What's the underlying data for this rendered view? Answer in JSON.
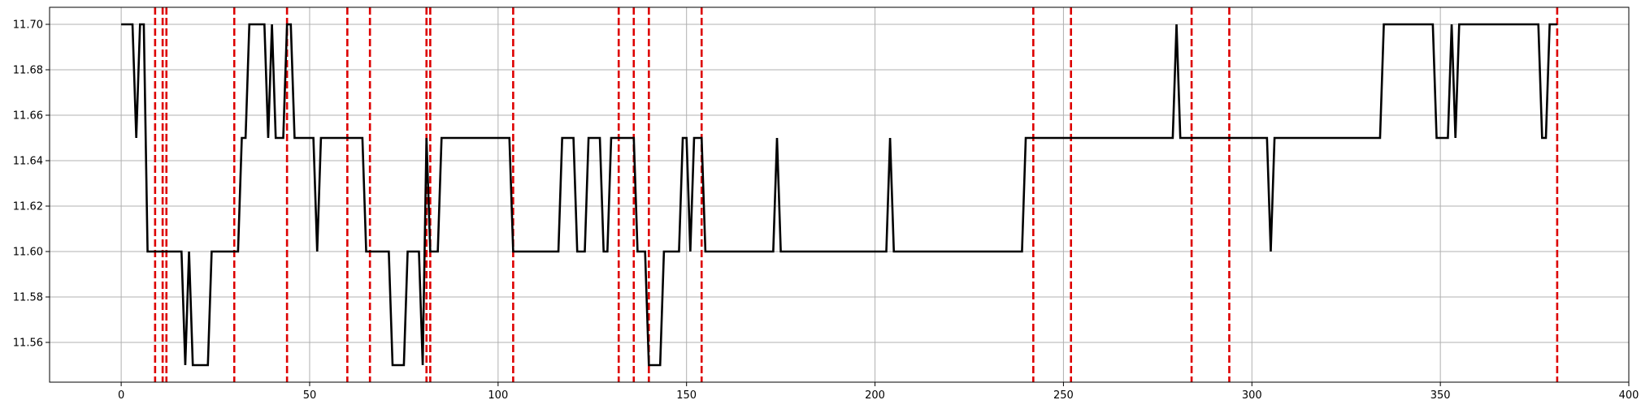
{
  "chart_data": {
    "type": "line",
    "title": "",
    "xlabel": "",
    "ylabel": "",
    "xlim": [
      -19,
      400
    ],
    "ylim": [
      11.5425,
      11.7075
    ],
    "xticks": [
      0,
      50,
      100,
      150,
      200,
      250,
      300,
      350,
      400
    ],
    "xtick_labels": [
      "0",
      "50",
      "100",
      "150",
      "200",
      "250",
      "300",
      "350",
      "400"
    ],
    "yticks": [
      11.56,
      11.58,
      11.6,
      11.62,
      11.64,
      11.66,
      11.68,
      11.7
    ],
    "ytick_labels": [
      "11.56",
      "11.58",
      "11.60",
      "11.62",
      "11.64",
      "11.66",
      "11.68",
      "11.70"
    ],
    "grid": true,
    "legend": "none",
    "series": [
      {
        "name": "",
        "color": "#000000",
        "points": [
          [
            0,
            11.7
          ],
          [
            3,
            11.7
          ],
          [
            4,
            11.65
          ],
          [
            5,
            11.7
          ],
          [
            6,
            11.7
          ],
          [
            7,
            11.6
          ],
          [
            16,
            11.6
          ],
          [
            17,
            11.55
          ],
          [
            18,
            11.6
          ],
          [
            19,
            11.55
          ],
          [
            23,
            11.55
          ],
          [
            24,
            11.6
          ],
          [
            31,
            11.6
          ],
          [
            32,
            11.65
          ],
          [
            33,
            11.65
          ],
          [
            34,
            11.7
          ],
          [
            38,
            11.7
          ],
          [
            39,
            11.65
          ],
          [
            40,
            11.7
          ],
          [
            41,
            11.65
          ],
          [
            43,
            11.65
          ],
          [
            44,
            11.7
          ],
          [
            45,
            11.7
          ],
          [
            46,
            11.65
          ],
          [
            51,
            11.65
          ],
          [
            52,
            11.6
          ],
          [
            53,
            11.65
          ],
          [
            64,
            11.65
          ],
          [
            65,
            11.6
          ],
          [
            71,
            11.6
          ],
          [
            72,
            11.55
          ],
          [
            75,
            11.55
          ],
          [
            76,
            11.6
          ],
          [
            79,
            11.6
          ],
          [
            80,
            11.55
          ],
          [
            81,
            11.65
          ],
          [
            82,
            11.6
          ],
          [
            84,
            11.6
          ],
          [
            85,
            11.65
          ],
          [
            103,
            11.65
          ],
          [
            104,
            11.6
          ],
          [
            116,
            11.6
          ],
          [
            117,
            11.65
          ],
          [
            120,
            11.65
          ],
          [
            121,
            11.6
          ],
          [
            123,
            11.6
          ],
          [
            124,
            11.65
          ],
          [
            127,
            11.65
          ],
          [
            128,
            11.6
          ],
          [
            129,
            11.6
          ],
          [
            130,
            11.65
          ],
          [
            136,
            11.65
          ],
          [
            137,
            11.6
          ],
          [
            139,
            11.6
          ],
          [
            140,
            11.55
          ],
          [
            143,
            11.55
          ],
          [
            144,
            11.6
          ],
          [
            148,
            11.6
          ],
          [
            149,
            11.65
          ],
          [
            150,
            11.65
          ],
          [
            151,
            11.6
          ],
          [
            152,
            11.65
          ],
          [
            154,
            11.65
          ],
          [
            155,
            11.6
          ],
          [
            173,
            11.6
          ],
          [
            174,
            11.65
          ],
          [
            175,
            11.6
          ],
          [
            203,
            11.6
          ],
          [
            204,
            11.65
          ],
          [
            205,
            11.6
          ],
          [
            239,
            11.6
          ],
          [
            240,
            11.65
          ],
          [
            279,
            11.65
          ],
          [
            280,
            11.7
          ],
          [
            281,
            11.65
          ],
          [
            304,
            11.65
          ],
          [
            305,
            11.6
          ],
          [
            306,
            11.65
          ],
          [
            334,
            11.65
          ],
          [
            335,
            11.7
          ],
          [
            348,
            11.7
          ],
          [
            349,
            11.65
          ],
          [
            352,
            11.65
          ],
          [
            353,
            11.7
          ],
          [
            354,
            11.65
          ],
          [
            355,
            11.7
          ],
          [
            376,
            11.7
          ],
          [
            377,
            11.65
          ],
          [
            378,
            11.65
          ],
          [
            379,
            11.7
          ],
          [
            381,
            11.7
          ]
        ]
      }
    ],
    "vlines": {
      "color": "#dd0000",
      "style": "dashed",
      "x": [
        9,
        11,
        12,
        30,
        44,
        60,
        66,
        81,
        82,
        104,
        132,
        136,
        140,
        154,
        242,
        252,
        284,
        294,
        381
      ]
    }
  }
}
